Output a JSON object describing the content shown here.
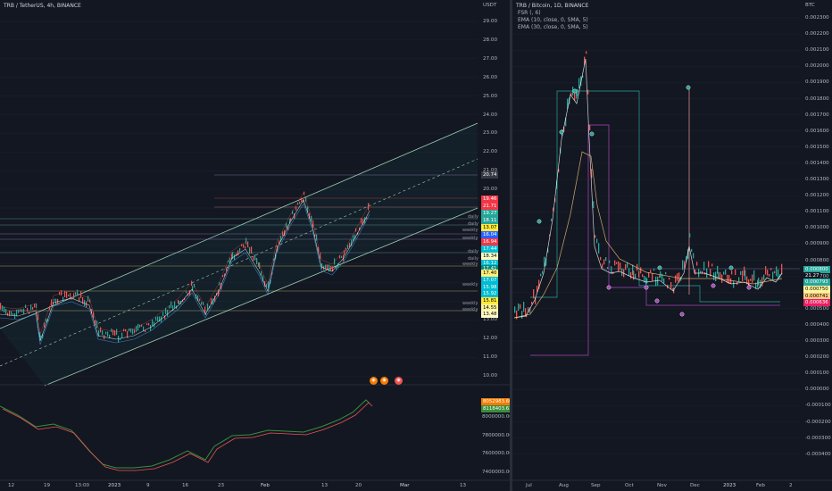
{
  "left_chart": {
    "title": "TRB / TetherUS, 4h, BINANCE",
    "currency": "USDT",
    "price_axis": [
      "29.00",
      "28.00",
      "27.00",
      "26.00",
      "25.00",
      "24.00",
      "23.00",
      "22.00",
      "21.00",
      "20.00",
      "19.00",
      "18.00",
      "17.00",
      "16.00",
      "15.00",
      "14.00",
      "13.00",
      "12.00",
      "11.00",
      "10.00"
    ],
    "price_tags": [
      {
        "text": "20.74",
        "bg": "#363a45"
      },
      {
        "text": "19.46",
        "bg": "#f23645"
      },
      {
        "text": "21.71",
        "bg": "#f23645"
      },
      {
        "text": "19.27",
        "bg": "#26a69a"
      },
      {
        "text": "18.11",
        "bg": "#26a69a"
      },
      {
        "text": "13.07",
        "bg": "#ffeb3b",
        "fg": "#000"
      },
      {
        "text": "16.04",
        "bg": "#2962ff"
      },
      {
        "text": "16.94",
        "bg": "#f23645"
      },
      {
        "text": "17.44",
        "bg": "#00bcd4"
      },
      {
        "text": "18.34",
        "bg": "#fff9c4",
        "fg": "#000"
      },
      {
        "text": "16.12",
        "bg": "#00bcd4"
      },
      {
        "text": "17.41",
        "bg": "#00897b"
      },
      {
        "text": "17.40",
        "bg": "#fff176",
        "fg": "#000"
      },
      {
        "text": "17.07",
        "bg": "#00bcd4"
      },
      {
        "text": "15.98",
        "bg": "#00bcd4"
      },
      {
        "text": "15.92",
        "bg": "#00bcd4"
      },
      {
        "text": "15.81",
        "bg": "#ffeb3b",
        "fg": "#000"
      },
      {
        "text": "14.55",
        "bg": "#fff59d",
        "fg": "#000"
      },
      {
        "text": "13.48",
        "bg": "#fff9c4",
        "fg": "#000"
      }
    ],
    "level_labels": [
      "daily",
      "daily",
      "weekly",
      "weekly",
      "daily",
      "daily",
      "weekly",
      "weekly",
      "weekly",
      "weekly"
    ],
    "osc_axis": [
      "8000000.00",
      "7800000.00",
      "7600000.00",
      "7400000.00"
    ],
    "osc_tags": [
      {
        "text": "8052983.600",
        "bg": "#f57c00"
      },
      {
        "text": "8118403.61",
        "bg": "#388e3c"
      }
    ],
    "time_axis": [
      "12",
      "19",
      "13:00",
      "2023",
      "9",
      "16",
      "23",
      "Feb",
      "13",
      "20",
      "Mar",
      "13"
    ]
  },
  "right_chart": {
    "title": "TRB / Bitcoin, 1D, BINANCE",
    "indicators": [
      "FSR (, 6)",
      "EMA (10, close, 0, SMA, 5)",
      "EMA (30, close, 0, SMA, 5)"
    ],
    "currency": "BTC",
    "price_axis": [
      "0.002300",
      "0.002200",
      "0.002100",
      "0.002000",
      "0.001900",
      "0.001800",
      "0.001700",
      "0.001600",
      "0.001500",
      "0.001400",
      "0.001300",
      "0.001200",
      "0.001100",
      "0.001000",
      "0.000900",
      "0.000800",
      "0.000700",
      "0.000600",
      "0.000500",
      "0.000400",
      "0.000300",
      "0.000200",
      "0.000100",
      "0.000000",
      "-0.000100",
      "-0.000200",
      "-0.000300",
      "-0.000400"
    ],
    "price_tags": [
      {
        "text": "0.000800",
        "bg": "#26a69a"
      },
      {
        "text": "21.27",
        "bg": "#131722"
      },
      {
        "text": "0.000793",
        "bg": "#26a69a"
      },
      {
        "text": "0.000750",
        "bg": "#fff59d",
        "fg": "#000"
      },
      {
        "text": "0.000741",
        "bg": "#ffcc80",
        "fg": "#000"
      },
      {
        "text": "0.000636",
        "bg": "#e91e63"
      }
    ],
    "time_axis": [
      "Jul",
      "Aug",
      "Sep",
      "Oct",
      "Nov",
      "Dec",
      "2023",
      "Feb",
      "2"
    ]
  },
  "colors": {
    "bg": "#131722",
    "up": "#26a69a",
    "down": "#ef5350",
    "grid": "#1e222d"
  }
}
